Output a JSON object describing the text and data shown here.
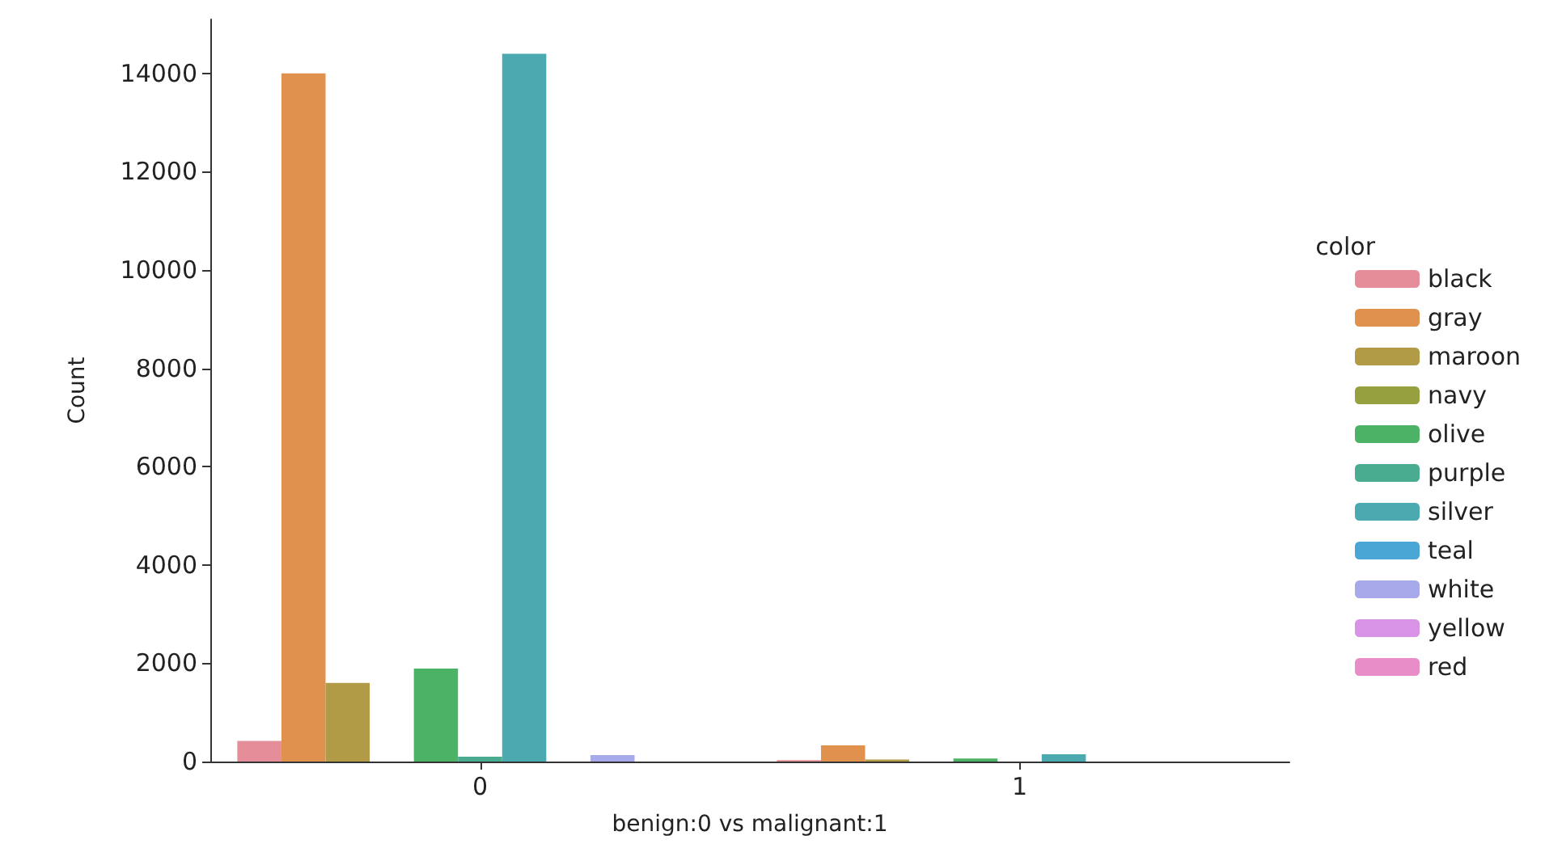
{
  "chart_data": {
    "type": "bar",
    "xlabel": "benign:0 vs malignant:1",
    "ylabel": "Count",
    "legend_title": "color",
    "categories": [
      "0",
      "1"
    ],
    "series": [
      {
        "name": "black",
        "color": "#e58e99",
        "values": [
          420,
          30
        ]
      },
      {
        "name": "gray",
        "color": "#e0914e",
        "values": [
          14000,
          330
        ]
      },
      {
        "name": "maroon",
        "color": "#b29b47",
        "values": [
          1600,
          40
        ]
      },
      {
        "name": "navy",
        "color": "#96a03f",
        "values": [
          0,
          0
        ]
      },
      {
        "name": "olive",
        "color": "#4cb266",
        "values": [
          1890,
          60
        ]
      },
      {
        "name": "purple",
        "color": "#49ab90",
        "values": [
          100,
          0
        ]
      },
      {
        "name": "silver",
        "color": "#4aaab0",
        "values": [
          14400,
          150
        ]
      },
      {
        "name": "teal",
        "color": "#4aa6d4",
        "values": [
          0,
          0
        ]
      },
      {
        "name": "white",
        "color": "#a7a9ea",
        "values": [
          130,
          0
        ]
      },
      {
        "name": "yellow",
        "color": "#d893e6",
        "values": [
          0,
          0
        ]
      },
      {
        "name": "red",
        "color": "#e88dc7",
        "values": [
          0,
          0
        ]
      }
    ],
    "ylim": [
      0,
      15100
    ],
    "yticks": [
      0,
      2000,
      4000,
      6000,
      8000,
      10000,
      12000,
      14000
    ],
    "grid": false,
    "legend": "right"
  }
}
